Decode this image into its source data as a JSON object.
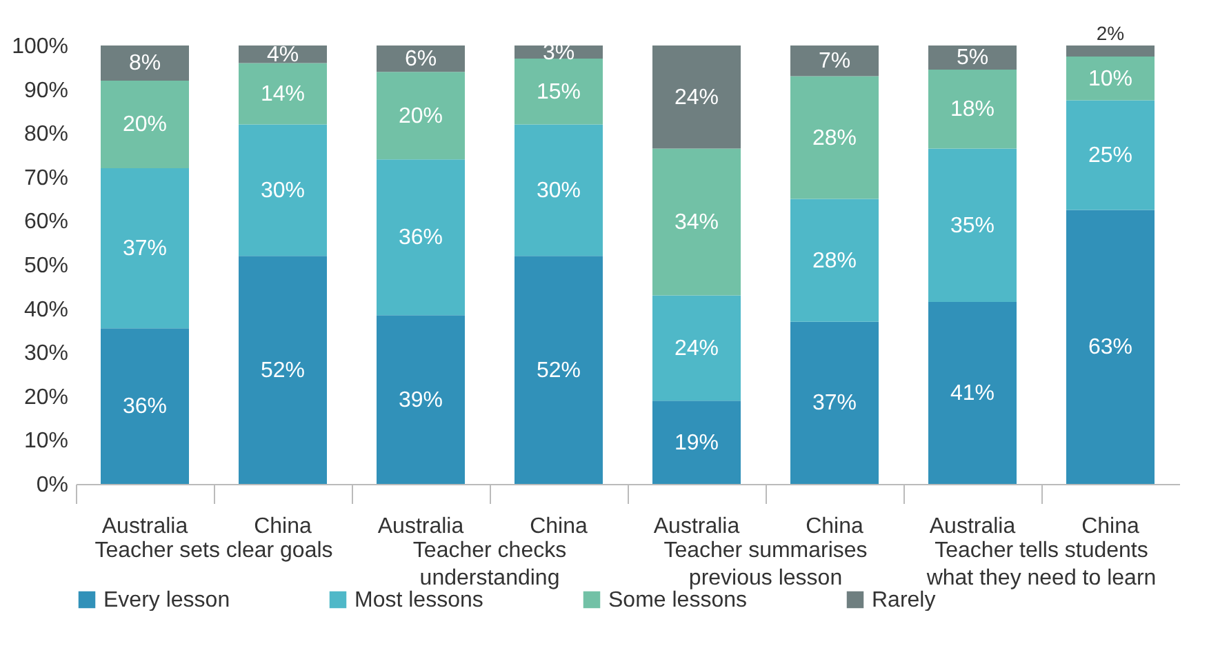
{
  "chart_data": {
    "type": "bar",
    "stacked": true,
    "categories": [
      "Australia",
      "China",
      "Australia",
      "China",
      "Australia",
      "China",
      "Australia",
      "China"
    ],
    "annotations": [
      "Teacher sets clear goals",
      "Teacher checks understanding",
      "Teacher summarises previous lesson",
      "Teacher tells students what they need to learn"
    ],
    "series": [
      {
        "name": "Every lesson",
        "color": "#3191b9",
        "values": [
          35.5,
          52,
          38.5,
          52,
          19,
          37,
          41.5,
          62.5
        ],
        "value_labels": [
          "36%",
          "52%",
          "39%",
          "52%",
          "19%",
          "37%",
          "41%",
          "63%"
        ]
      },
      {
        "name": "Most lessons",
        "color": "#4fb8c8",
        "values": [
          36.5,
          30,
          35.5,
          30,
          24,
          28,
          35,
          25
        ],
        "value_labels": [
          "37%",
          "30%",
          "36%",
          "30%",
          "24%",
          "28%",
          "35%",
          "25%"
        ]
      },
      {
        "name": "Some lessons",
        "color": "#72c1a6",
        "values": [
          20,
          14,
          20,
          15,
          33.5,
          28,
          18,
          10
        ],
        "value_labels": [
          "20%",
          "14%",
          "20%",
          "15%",
          "34%",
          "28%",
          "18%",
          "10%"
        ]
      },
      {
        "name": "Rarely",
        "color": "#6f7f80",
        "values": [
          8,
          4,
          6,
          3,
          23.5,
          7,
          5.5,
          2.5
        ],
        "value_labels": [
          "8%",
          "4%",
          "6%",
          "3%",
          "24%",
          "7%",
          "5%",
          "2%"
        ]
      }
    ],
    "ylim": [
      0,
      100
    ],
    "yticks": [
      {
        "value": 0,
        "label": "0%"
      },
      {
        "value": 10,
        "label": "10%"
      },
      {
        "value": 20,
        "label": "20%"
      },
      {
        "value": 30,
        "label": "30%"
      },
      {
        "value": 40,
        "label": "40%"
      },
      {
        "value": 50,
        "label": "50%"
      },
      {
        "value": 60,
        "label": "60%"
      },
      {
        "value": 70,
        "label": "70%"
      },
      {
        "value": 80,
        "label": "80%"
      },
      {
        "value": 90,
        "label": "90%"
      },
      {
        "value": 100,
        "label": "100%"
      }
    ],
    "grid": false,
    "legend": "bottom"
  }
}
